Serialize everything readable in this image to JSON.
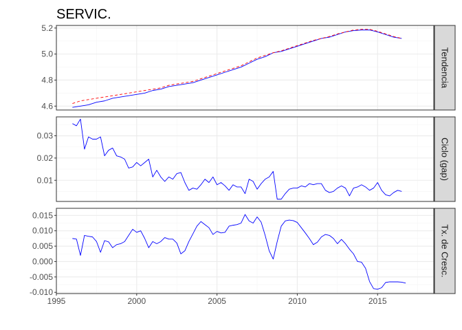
{
  "chart_data": {
    "type": "line",
    "title": "SERVIC.",
    "xlim": [
      1995,
      2018.5
    ],
    "x_ticks": [
      1995,
      2000,
      2005,
      2010,
      2015
    ],
    "grid": true,
    "colors": {
      "panel_background": "#ffffff",
      "grid_major": "#ebebeb",
      "grid_minor": "#f5f5f5",
      "panel_border": "#333333",
      "strip_background": "#d9d9d9",
      "blue_series": "#0000ff",
      "red_series": "#ff0000"
    },
    "panels": [
      {
        "strip_label": "Tendencia",
        "ylim": [
          4.57,
          5.22
        ],
        "y_ticks": [
          4.6,
          4.8,
          5.0,
          5.2
        ],
        "y_tick_labels": [
          "4.6",
          "4.8",
          "5.0",
          "5.2"
        ],
        "series": [
          {
            "color": "#0000ff",
            "style": "solid",
            "x": [
              1996.0,
              1996.5,
              1997.0,
              1997.5,
              1998.0,
              1998.5,
              1999.0,
              1999.5,
              2000.0,
              2000.5,
              2001.0,
              2001.5,
              2002.0,
              2002.5,
              2003.0,
              2003.5,
              2004.0,
              2004.5,
              2005.0,
              2005.5,
              2006.0,
              2006.5,
              2007.0,
              2007.5,
              2008.0,
              2008.5,
              2009.0,
              2009.5,
              2010.0,
              2010.5,
              2011.0,
              2011.5,
              2012.0,
              2012.5,
              2013.0,
              2013.5,
              2014.0,
              2014.5,
              2015.0,
              2015.5,
              2016.0,
              2016.5
            ],
            "values": [
              4.59,
              4.6,
              4.61,
              4.63,
              4.64,
              4.66,
              4.67,
              4.68,
              4.69,
              4.7,
              4.72,
              4.73,
              4.75,
              4.76,
              4.77,
              4.78,
              4.8,
              4.82,
              4.84,
              4.86,
              4.88,
              4.9,
              4.93,
              4.96,
              4.98,
              5.01,
              5.02,
              5.04,
              5.06,
              5.08,
              5.1,
              5.12,
              5.13,
              5.15,
              5.17,
              5.18,
              5.185,
              5.185,
              5.17,
              5.15,
              5.13,
              5.12
            ]
          },
          {
            "color": "#ff0000",
            "style": "dashed",
            "x": [
              1996.0,
              1996.5,
              1997.0,
              1997.5,
              1998.0,
              1998.5,
              1999.0,
              1999.5,
              2000.0,
              2000.5,
              2001.0,
              2001.5,
              2002.0,
              2002.5,
              2003.0,
              2003.5,
              2004.0,
              2004.5,
              2005.0,
              2005.5,
              2006.0,
              2006.5,
              2007.0,
              2007.5,
              2008.0,
              2008.5,
              2009.0,
              2009.5,
              2010.0,
              2010.5,
              2011.0,
              2011.5,
              2012.0,
              2012.5,
              2013.0,
              2013.5,
              2014.0,
              2014.5,
              2015.0,
              2015.5,
              2016.0,
              2016.5
            ],
            "values": [
              4.62,
              4.64,
              4.65,
              4.66,
              4.67,
              4.68,
              4.69,
              4.7,
              4.71,
              4.72,
              4.73,
              4.74,
              4.76,
              4.77,
              4.78,
              4.79,
              4.81,
              4.83,
              4.85,
              4.87,
              4.89,
              4.91,
              4.94,
              4.97,
              4.99,
              5.01,
              5.025,
              5.045,
              5.065,
              5.085,
              5.105,
              5.12,
              5.135,
              5.155,
              5.17,
              5.185,
              5.19,
              5.19,
              5.175,
              5.155,
              5.135,
              5.12
            ]
          }
        ]
      },
      {
        "strip_label": "Ciclo (gap)",
        "ylim": [
          0.0005,
          0.0385
        ],
        "y_ticks": [
          0.01,
          0.02,
          0.03
        ],
        "y_tick_labels": [
          "0.01",
          "0.02",
          "0.03"
        ],
        "series": [
          {
            "color": "#0000ff",
            "style": "solid",
            "x": [
              1996.0,
              1996.25,
              1996.5,
              1996.75,
              1997.0,
              1997.25,
              1997.5,
              1997.75,
              1998.0,
              1998.25,
              1998.5,
              1998.75,
              1999.0,
              1999.25,
              1999.5,
              1999.75,
              2000.0,
              2000.25,
              2000.5,
              2000.75,
              2001.0,
              2001.25,
              2001.5,
              2001.75,
              2002.0,
              2002.25,
              2002.5,
              2002.75,
              2003.0,
              2003.25,
              2003.5,
              2003.75,
              2004.0,
              2004.25,
              2004.5,
              2004.75,
              2005.0,
              2005.25,
              2005.5,
              2005.75,
              2006.0,
              2006.25,
              2006.5,
              2006.75,
              2007.0,
              2007.25,
              2007.5,
              2007.75,
              2008.0,
              2008.25,
              2008.5,
              2008.75,
              2009.0,
              2009.25,
              2009.5,
              2009.75,
              2010.0,
              2010.25,
              2010.5,
              2010.75,
              2011.0,
              2011.25,
              2011.5,
              2011.75,
              2012.0,
              2012.25,
              2012.5,
              2012.75,
              2013.0,
              2013.25,
              2013.5,
              2013.75,
              2014.0,
              2014.25,
              2014.5,
              2014.75,
              2015.0,
              2015.25,
              2015.5,
              2015.75,
              2016.0,
              2016.25,
              2016.5
            ],
            "values": [
              0.0355,
              0.0345,
              0.0375,
              0.024,
              0.0295,
              0.0285,
              0.0285,
              0.0295,
              0.021,
              0.0235,
              0.0245,
              0.021,
              0.0205,
              0.0195,
              0.0155,
              0.016,
              0.018,
              0.0165,
              0.018,
              0.0195,
              0.0115,
              0.0145,
              0.0115,
              0.0095,
              0.0115,
              0.0105,
              0.013,
              0.0135,
              0.009,
              0.0055,
              0.0065,
              0.006,
              0.008,
              0.0105,
              0.009,
              0.0115,
              0.008,
              0.009,
              0.0075,
              0.0055,
              0.008,
              0.007,
              0.007,
              0.004,
              0.0105,
              0.0095,
              0.006,
              0.0085,
              0.0105,
              0.0115,
              0.014,
              0.0015,
              0.0015,
              0.004,
              0.006,
              0.0065,
              0.0065,
              0.0075,
              0.007,
              0.0085,
              0.008,
              0.0085,
              0.0085,
              0.0055,
              0.0045,
              0.005,
              0.0065,
              0.0075,
              0.0065,
              0.003,
              0.0065,
              0.007,
              0.008,
              0.007,
              0.0055,
              0.0065,
              0.009,
              0.0055,
              0.0035,
              0.003,
              0.0045,
              0.0055,
              0.005
            ]
          }
        ]
      },
      {
        "strip_label": "Tx. de Cresc.",
        "ylim": [
          -0.0104,
          0.0173
        ],
        "y_ticks": [
          -0.01,
          -0.005,
          0.0,
          0.005,
          0.01,
          0.015
        ],
        "y_tick_labels": [
          "-0.010",
          "-0.005",
          "0.000",
          "0.005",
          "0.010",
          "0.015"
        ],
        "series": [
          {
            "color": "#0000ff",
            "style": "solid",
            "x": [
              1996.0,
              1996.25,
              1996.5,
              1996.75,
              1997.0,
              1997.25,
              1997.5,
              1997.75,
              1998.0,
              1998.25,
              1998.5,
              1998.75,
              1999.0,
              1999.25,
              1999.5,
              1999.75,
              2000.0,
              2000.25,
              2000.5,
              2000.75,
              2001.0,
              2001.25,
              2001.5,
              2001.75,
              2002.0,
              2002.25,
              2002.5,
              2002.75,
              2003.0,
              2003.25,
              2003.5,
              2003.75,
              2004.0,
              2004.25,
              2004.5,
              2004.75,
              2005.0,
              2005.25,
              2005.5,
              2005.75,
              2006.0,
              2006.25,
              2006.5,
              2006.75,
              2007.0,
              2007.25,
              2007.5,
              2007.75,
              2008.0,
              2008.25,
              2008.5,
              2008.75,
              2009.0,
              2009.25,
              2009.5,
              2009.75,
              2010.0,
              2010.25,
              2010.5,
              2010.75,
              2011.0,
              2011.25,
              2011.5,
              2011.75,
              2012.0,
              2012.25,
              2012.5,
              2012.75,
              2013.0,
              2013.25,
              2013.5,
              2013.75,
              2014.0,
              2014.25,
              2014.5,
              2014.75,
              2015.0,
              2015.25,
              2015.5,
              2015.75,
              2016.0,
              2016.25,
              2016.5,
              2016.75
            ],
            "values": [
              0.0075,
              0.0073,
              0.002,
              0.0085,
              0.0082,
              0.008,
              0.0065,
              0.003,
              0.0068,
              0.0064,
              0.0045,
              0.0055,
              0.0058,
              0.0065,
              0.0085,
              0.0105,
              0.0095,
              0.01,
              0.0075,
              0.0045,
              0.0065,
              0.0058,
              0.0065,
              0.0078,
              0.0073,
              0.0073,
              0.006,
              0.0025,
              0.0035,
              0.0065,
              0.009,
              0.0115,
              0.013,
              0.012,
              0.011,
              0.0088,
              0.0098,
              0.0093,
              0.0095,
              0.0115,
              0.0118,
              0.012,
              0.0125,
              0.0153,
              0.0132,
              0.0125,
              0.0145,
              0.0128,
              0.0085,
              0.0035,
              0.0008,
              0.0065,
              0.0115,
              0.0132,
              0.0135,
              0.0133,
              0.0127,
              0.011,
              0.0093,
              0.0075,
              0.0055,
              0.0063,
              0.008,
              0.0088,
              0.0085,
              0.0075,
              0.0058,
              0.0072,
              0.0058,
              0.004,
              0.0025,
              0.0,
              -0.0002,
              -0.0022,
              -0.0065,
              -0.0088,
              -0.009,
              -0.0085,
              -0.0068,
              -0.0066,
              -0.0066,
              -0.0066,
              -0.0067,
              -0.007
            ]
          }
        ]
      }
    ]
  }
}
